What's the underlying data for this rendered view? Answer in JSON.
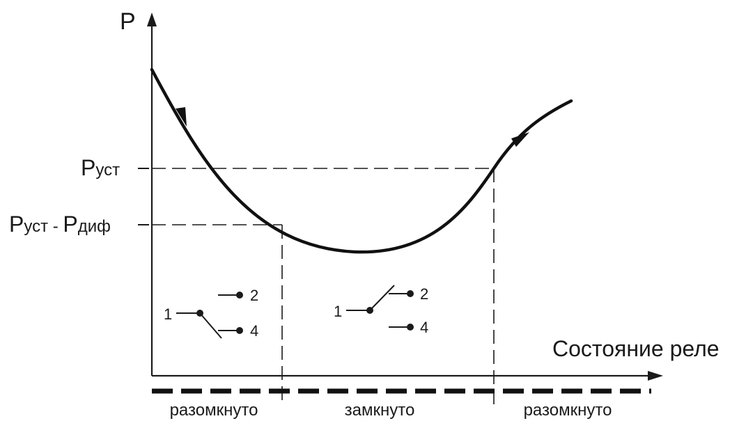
{
  "axes": {
    "y_label": "P",
    "x_label": "Состояние реле"
  },
  "levels": {
    "p_set": {
      "main": "P",
      "sub": "уст"
    },
    "p_set_minus_diff": {
      "main": "P",
      "sub": "уст",
      "minus": " - ",
      "main2": "P",
      "sub2": "диф"
    }
  },
  "states": [
    {
      "label": "разомкнуто"
    },
    {
      "label": "замкнуто"
    },
    {
      "label": "разомкнуто"
    }
  ],
  "contacts": {
    "common": "1",
    "no": "2",
    "nc": "4"
  }
}
